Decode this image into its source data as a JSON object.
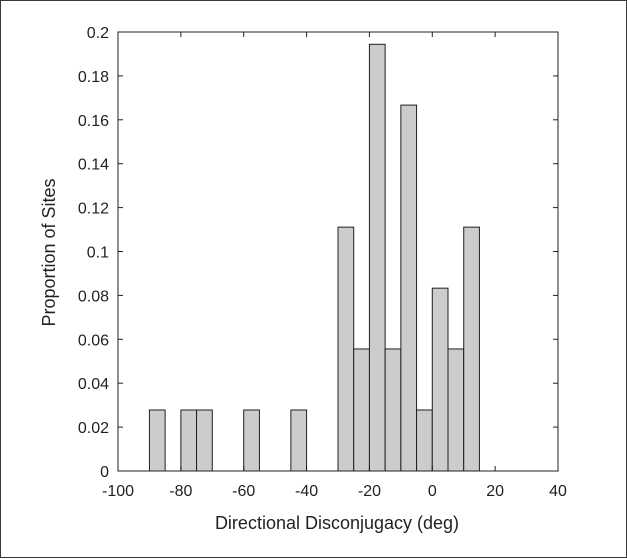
{
  "chart_data": {
    "type": "bar",
    "title": "",
    "xlabel": "Directional Disconjugacy (deg)",
    "ylabel": "Proportion of Sites",
    "xlim": [
      -100,
      40
    ],
    "ylim": [
      0,
      0.2
    ],
    "bin_width": 5,
    "bars": [
      {
        "x": -95,
        "value": 0
      },
      {
        "x": -90,
        "value": 0.0278
      },
      {
        "x": -85,
        "value": 0
      },
      {
        "x": -80,
        "value": 0.0278
      },
      {
        "x": -75,
        "value": 0.0278
      },
      {
        "x": -70,
        "value": 0
      },
      {
        "x": -65,
        "value": 0
      },
      {
        "x": -60,
        "value": 0.0278
      },
      {
        "x": -55,
        "value": 0
      },
      {
        "x": -50,
        "value": 0
      },
      {
        "x": -45,
        "value": 0.0278
      },
      {
        "x": -40,
        "value": 0
      },
      {
        "x": -35,
        "value": 0
      },
      {
        "x": -30,
        "value": 0.1111
      },
      {
        "x": -25,
        "value": 0.0556
      },
      {
        "x": -20,
        "value": 0.1944
      },
      {
        "x": -15,
        "value": 0.0556
      },
      {
        "x": -10,
        "value": 0.1667
      },
      {
        "x": -5,
        "value": 0.0278
      },
      {
        "x": 0,
        "value": 0.0833
      },
      {
        "x": 5,
        "value": 0.0556
      },
      {
        "x": 10,
        "value": 0.1111
      },
      {
        "x": 15,
        "value": 0
      },
      {
        "x": 20,
        "value": 0
      }
    ],
    "x_ticks": [
      "-100",
      "-80",
      "-60",
      "-40",
      "-20",
      "0",
      "20",
      "40"
    ],
    "y_ticks": [
      "0",
      "0.02",
      "0.04",
      "0.06",
      "0.08",
      "0.1",
      "0.12",
      "0.14",
      "0.16",
      "0.18",
      "0.2"
    ],
    "grid": false,
    "colors": {
      "bar_fill": "#cbcccd",
      "bar_stroke": "#231f20",
      "axis": "#231f20"
    }
  }
}
